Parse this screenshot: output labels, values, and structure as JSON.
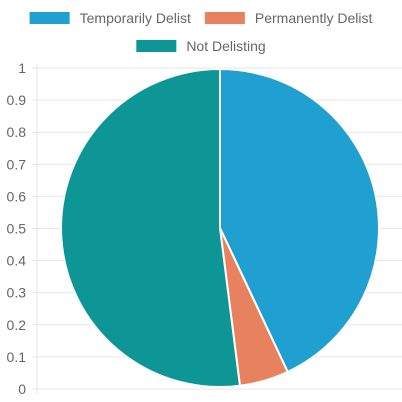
{
  "chart_data": {
    "type": "pie",
    "title": "",
    "legend_position": "top",
    "grid": true,
    "ylim": [
      0,
      1
    ],
    "yticks": [
      "0",
      "0.1",
      "0.2",
      "0.3",
      "0.4",
      "0.5",
      "0.6",
      "0.7",
      "0.8",
      "0.9",
      "1"
    ],
    "series": [
      {
        "labels": [
          "Temporarily Delist",
          "Permanently Delist",
          "Not Delisting"
        ],
        "values": [
          43,
          5,
          52
        ],
        "colors": [
          "#1fa0d0",
          "#e8825e",
          "#0e9696"
        ]
      }
    ]
  }
}
